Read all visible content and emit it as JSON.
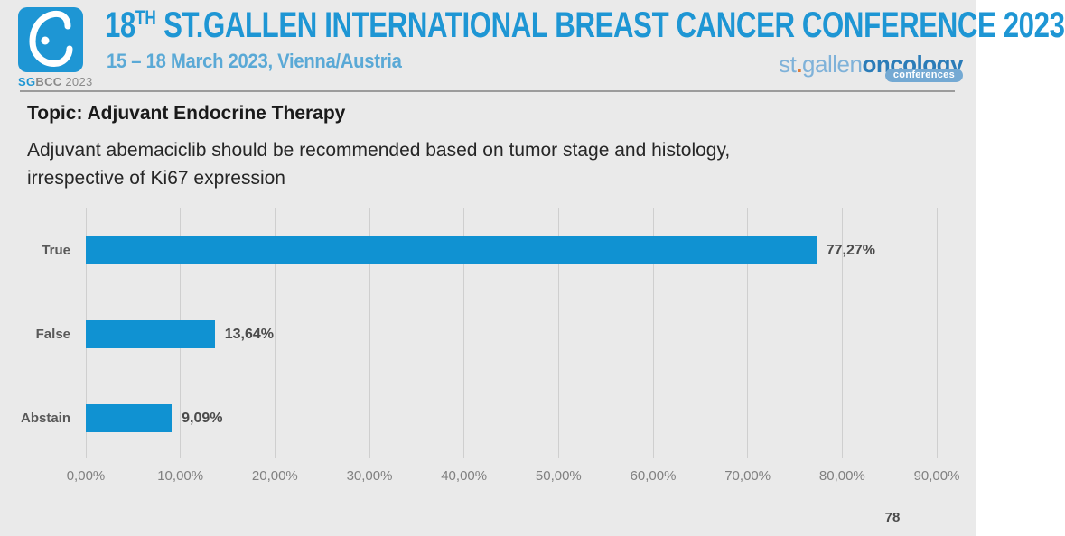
{
  "header": {
    "logo": {
      "caption_sg": "SG",
      "caption_bcc": "BCC",
      "caption_year": " 2023"
    },
    "title_num": "18",
    "title_sup": "TH",
    "title_rest": " ST.GALLEN INTERNATIONAL BREAST CANCER CONFERENCE 2023",
    "subtitle": "15 – 18 March 2023, Vienna/Austria",
    "brand": {
      "st": "st",
      "dot": ".",
      "gallen": "gallen",
      "oncology": "oncology",
      "conferences": "conferences"
    }
  },
  "content": {
    "topic_heading": "Topic: Adjuvant Endocrine Therapy",
    "question_lines": [
      "Adjuvant abemaciclib should be recommended based on tumor stage and histology,",
      "irrespective of Ki67 expression"
    ],
    "page_number": "78"
  },
  "chart_data": {
    "type": "bar",
    "orientation": "horizontal",
    "title": "",
    "categories": [
      "True",
      "False",
      "Abstain"
    ],
    "values": [
      77.27,
      13.64,
      9.09
    ],
    "value_labels": [
      "77,27%",
      "13,64%",
      "9,09%"
    ],
    "x_ticks": [
      0,
      10,
      20,
      30,
      40,
      50,
      60,
      70,
      80,
      90
    ],
    "x_tick_labels": [
      "0,00%",
      "10,00%",
      "20,00%",
      "30,00%",
      "40,00%",
      "50,00%",
      "60,00%",
      "70,00%",
      "80,00%",
      "90,00%"
    ],
    "xlim": [
      0,
      90
    ],
    "grid": true,
    "legend": false,
    "bar_color": "#1092d2"
  },
  "colors": {
    "background": "#eaeaea",
    "title_blue": "#1e96d4",
    "subtitle_blue": "#5aa9d6",
    "bar_blue": "#1092d2",
    "gridline_gray": "#cfcfcf"
  }
}
